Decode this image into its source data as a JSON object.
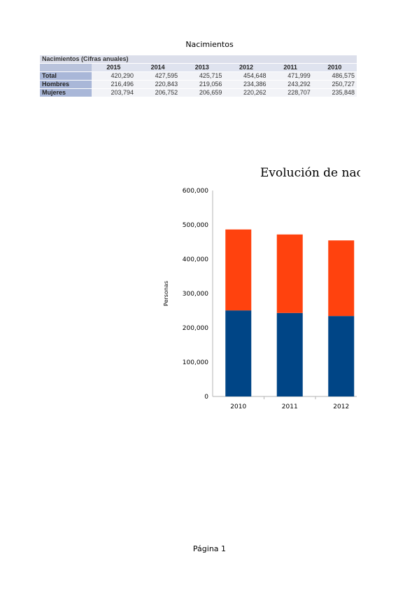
{
  "page": {
    "header": "Nacimientos",
    "footer": "Página 1"
  },
  "table": {
    "caption": "Nacimientos (Cifras anuales)",
    "years": [
      "2015",
      "2014",
      "2013",
      "2012",
      "2011",
      "2010"
    ],
    "rows": [
      {
        "label": "Total",
        "values": [
          "420,290",
          "427,595",
          "425,715",
          "454,648",
          "471,999",
          "486,575"
        ]
      },
      {
        "label": "Hombres",
        "values": [
          "216,496",
          "220,843",
          "219,056",
          "234,386",
          "243,292",
          "250,727"
        ]
      },
      {
        "label": "Mujeres",
        "values": [
          "203,794",
          "206,752",
          "206,659",
          "220,262",
          "228,707",
          "235,848"
        ]
      }
    ]
  },
  "chart_data": {
    "type": "bar",
    "stacked": true,
    "title": "Evolución de nac",
    "xlabel": "",
    "ylabel": "Personas",
    "ylim": [
      0,
      600000
    ],
    "yticks": [
      "0",
      "100,000",
      "200,000",
      "300,000",
      "400,000",
      "500,000",
      "600,000"
    ],
    "categories": [
      "2010",
      "2011",
      "2012"
    ],
    "series": [
      {
        "values": [
          250727,
          243292,
          234386
        ],
        "color": "#004586"
      },
      {
        "values": [
          235848,
          228707,
          220262
        ],
        "color": "#ff420e"
      }
    ],
    "grid": false
  }
}
